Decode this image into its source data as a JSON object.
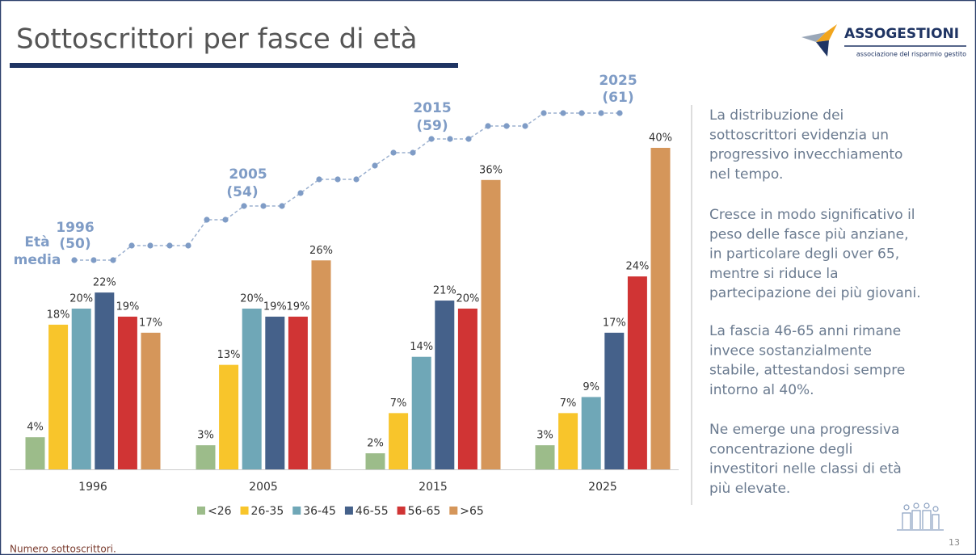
{
  "header": {
    "title": "Sottoscrittori per fasce di età",
    "logo": "ASSOGESTIONI",
    "logo_subtitle": "associazione del risparmio gestito"
  },
  "chart_data": {
    "type": "bar",
    "categories": [
      "1996",
      "2005",
      "2015",
      "2025"
    ],
    "series": [
      {
        "name": "<26",
        "color": "#9cbc8a",
        "values": [
          4,
          3,
          2,
          3
        ],
        "value_labels": [
          "4%",
          "3%",
          "2%",
          "3%"
        ]
      },
      {
        "name": "26-35",
        "color": "#f8c52b",
        "values": [
          18,
          13,
          7,
          7
        ],
        "value_labels": [
          "18%",
          "13%",
          "7%",
          "7%"
        ]
      },
      {
        "name": "36-45",
        "color": "#6fa7b7",
        "values": [
          20,
          20,
          14,
          9
        ],
        "value_labels": [
          "20%",
          "20%",
          "14%",
          "9%"
        ]
      },
      {
        "name": "46-55",
        "color": "#45618a",
        "values": [
          22,
          19,
          21,
          17
        ],
        "value_labels": [
          "22%",
          "19%",
          "21%",
          "17%"
        ]
      },
      {
        "name": "56-65",
        "color": "#d03434",
        "values": [
          19,
          19,
          20,
          24
        ],
        "value_labels": [
          "19%",
          "19%",
          "20%",
          "24%"
        ]
      },
      {
        "name": ">65",
        "color": "#d5965a",
        "values": [
          17,
          26,
          36,
          40
        ],
        "value_labels": [
          "17%",
          "26%",
          "36%",
          "40%"
        ]
      }
    ],
    "annotations": [
      {
        "text": "Età"
      },
      {
        "text": "media"
      },
      {
        "text": "1996"
      },
      {
        "text": "(50)"
      },
      {
        "text": "2005"
      },
      {
        "text": "(54)"
      },
      {
        "text": "2015"
      },
      {
        "text": "(59)"
      },
      {
        "text": "2025"
      },
      {
        "text": "(61)"
      }
    ]
  },
  "paragraphs": [
    [
      "La distribuzione dei",
      "sottoscrittori evidenzia un",
      "progressivo invecchiamento",
      "nel tempo."
    ],
    [
      "Cresce in modo significativo il",
      "peso delle fasce più anziane,",
      "in particolare degli over 65,",
      "mentre si riduce la",
      "partecipazione dei più giovani."
    ],
    [
      "La fascia 46-65 anni rimane",
      "invece sostanzialmente",
      "stabile, attestandosi sempre",
      "intorno al 40%."
    ],
    [
      "Ne emerge una progressiva",
      "concentrazione degli",
      "investitori nelle classi di età",
      "più elevate."
    ]
  ],
  "footnote": "Numero sottoscrittori.",
  "page_number": "13"
}
